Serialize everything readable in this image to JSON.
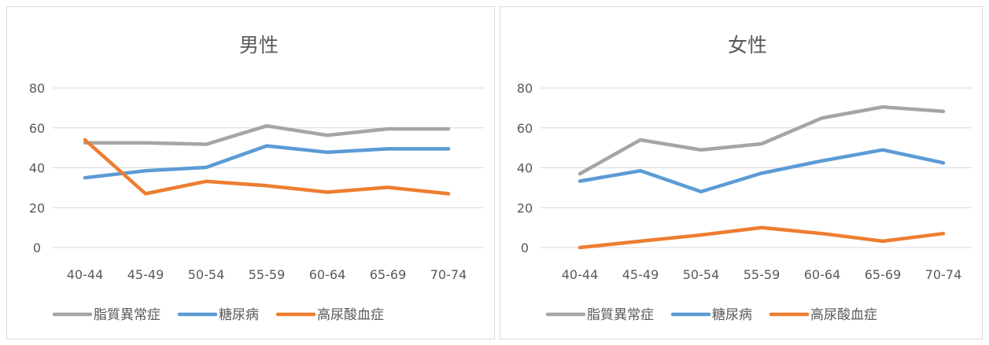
{
  "colors": {
    "gridline": "#d9d9d9",
    "text": "#595959"
  },
  "chart_data": [
    {
      "type": "line",
      "title": "男性",
      "xlabel": "",
      "ylabel": "",
      "categories": [
        "40-44",
        "45-49",
        "50-54",
        "55-59",
        "60-64",
        "65-69",
        "70-74"
      ],
      "ylim": [
        0,
        80
      ],
      "yticks": [
        0,
        20,
        40,
        60,
        80
      ],
      "grid": true,
      "legend": "bottom",
      "series": [
        {
          "name": "脂質異常症",
          "color": "#a5a5a5",
          "values": [
            52.5,
            52.5,
            51.8,
            61,
            56.3,
            59.5,
            59.5
          ]
        },
        {
          "name": "糖尿病",
          "color": "#5b9bd5",
          "values": [
            35,
            38.5,
            40.2,
            51,
            47.8,
            49.5,
            49.5
          ]
        },
        {
          "name": "高尿酸血症",
          "color": "#ed7d31",
          "values": [
            54,
            27,
            33.2,
            31,
            27.8,
            30.2,
            27
          ]
        }
      ]
    },
    {
      "type": "line",
      "title": "女性",
      "xlabel": "",
      "ylabel": "",
      "categories": [
        "40-44",
        "45-49",
        "50-54",
        "55-59",
        "60-64",
        "65-69",
        "70-74"
      ],
      "ylim": [
        0,
        80
      ],
      "yticks": [
        0,
        20,
        40,
        60,
        80
      ],
      "grid": true,
      "legend": "bottom",
      "series": [
        {
          "name": "脂質異常症",
          "color": "#a5a5a5",
          "values": [
            37,
            54,
            49,
            52,
            65,
            70.5,
            68.3
          ]
        },
        {
          "name": "糖尿病",
          "color": "#5b9bd5",
          "values": [
            33.3,
            38.5,
            28,
            37.3,
            43.5,
            49,
            42.5
          ]
        },
        {
          "name": "高尿酸血症",
          "color": "#ed7d31",
          "values": [
            0,
            3.2,
            6.3,
            10,
            7,
            3.2,
            7
          ]
        }
      ]
    }
  ]
}
